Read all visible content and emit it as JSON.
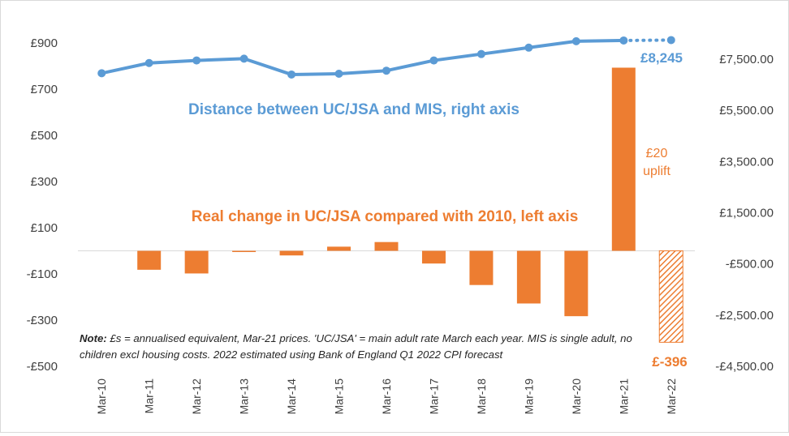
{
  "chart_data": {
    "type": "bar+line",
    "categories": [
      "Mar-10",
      "Mar-11",
      "Mar-12",
      "Mar-13",
      "Mar-14",
      "Mar-15",
      "Mar-16",
      "Mar-17",
      "Mar-18",
      "Mar-19",
      "Mar-20",
      "Mar-21",
      "Mar-22"
    ],
    "bar_series": {
      "name": "Real change in UC/JSA compared with 2010, left axis",
      "values": [
        0,
        -82,
        -98,
        -5,
        -20,
        18,
        38,
        -55,
        -148,
        -228,
        -283,
        793,
        -396
      ],
      "color": "#ED7D31",
      "hatched_category": "Mar-22"
    },
    "line_series": {
      "name": "Distance between UC/JSA and MIS, right axis",
      "values": [
        6950,
        7350,
        7450,
        7520,
        6900,
        6930,
        7050,
        7450,
        7700,
        7950,
        8200,
        8230,
        8245
      ],
      "projected_from": "Mar-21",
      "color": "#5B9BD5"
    },
    "left_axis": {
      "ylim": [
        -500,
        1000
      ],
      "ticks": [
        "£900",
        "£700",
        "£500",
        "£300",
        "£100",
        "-£100",
        "-£300",
        "-£500"
      ],
      "tick_values": [
        900,
        700,
        500,
        300,
        100,
        -100,
        -300,
        -500
      ]
    },
    "right_axis": {
      "ylim": [
        -5500,
        9500
      ],
      "ticks": [
        "£7,500.00",
        "£5,500.00",
        "£3,500.00",
        "£1,500.00",
        "-£500.00",
        "-£2,500.00",
        "-£4,500.00"
      ],
      "tick_values": [
        7500,
        5500,
        3500,
        1500,
        -500,
        -2500,
        -4500
      ]
    },
    "annotations": {
      "line_label": "Distance between UC/JSA and MIS, right axis",
      "bar_label": "Real change in UC/JSA compared with 2010, left axis",
      "uplift_line1": "£20",
      "uplift_line2": "uplift",
      "last_line_value": "£8,245",
      "last_bar_value": "£-396"
    },
    "note": {
      "bold": "Note:",
      "text": " £s = annualised equivalent, Mar-21 prices. 'UC/JSA' = main adult rate March each year. MIS is single adult, no children excl housing costs. 2022 estimated using Bank of England Q1 2022 CPI forecast"
    },
    "colors": {
      "bar": "#ED7D31",
      "line": "#5B9BD5",
      "gridline": "#d9d9d9"
    }
  }
}
